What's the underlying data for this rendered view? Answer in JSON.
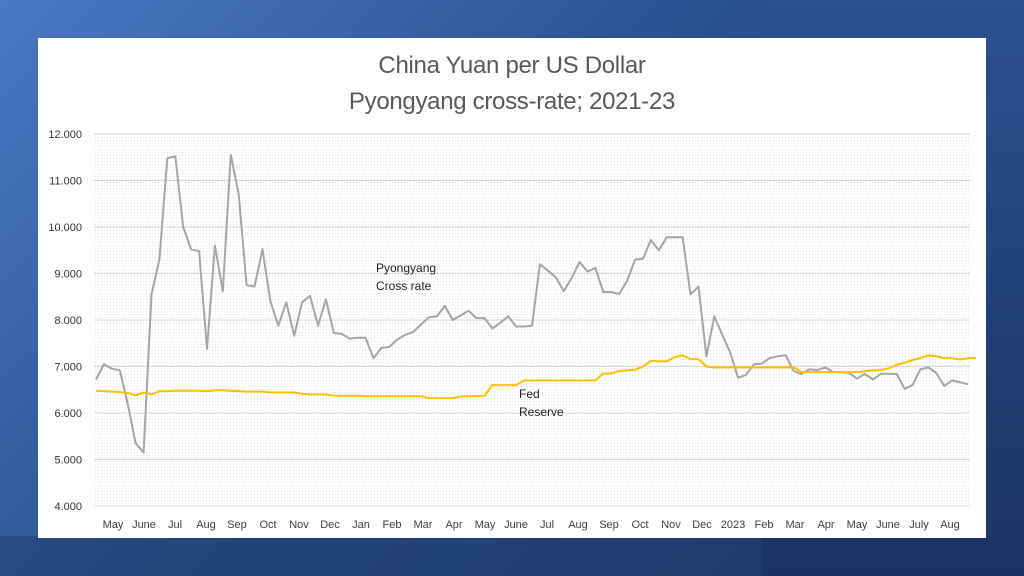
{
  "chart_data": {
    "type": "line",
    "title": "China Yuan per US Dollar",
    "subtitle": "Pyongyang cross-rate; 2021-23",
    "ylim": [
      4.0,
      12.0
    ],
    "y_ticks": [
      "4.000",
      "5.000",
      "6.000",
      "7.000",
      "8.000",
      "9.000",
      "10.000",
      "11.000",
      "12.000"
    ],
    "y_tick_values": [
      4,
      5,
      6,
      7,
      8,
      9,
      10,
      11,
      12
    ],
    "x_tick_labels": [
      "May",
      "June",
      "Jul",
      "Aug",
      "Sep",
      "Oct",
      "Nov",
      "Dec",
      "Jan",
      "Feb",
      "Mar",
      "Apr",
      "May",
      "June",
      "Jul",
      "Aug",
      "Sep",
      "Oct",
      "Nov",
      "Dec",
      "2023",
      "Feb",
      "Mar",
      "Apr",
      "May",
      "June",
      "July",
      "Aug"
    ],
    "grid": true,
    "annotations": [
      {
        "lines": [
          "Pyongyang",
          "Cross rate"
        ]
      },
      {
        "lines": [
          "Fed",
          "Reserve"
        ]
      }
    ],
    "series": [
      {
        "name": "Pyongyang Cross rate",
        "color": "#a6a6a6",
        "values": [
          6.72,
          7.05,
          6.95,
          6.92,
          6.2,
          5.35,
          5.15,
          8.55,
          9.3,
          11.48,
          11.52,
          10.0,
          9.52,
          9.48,
          7.38,
          9.6,
          8.62,
          11.55,
          10.7,
          8.75,
          8.72,
          9.52,
          8.4,
          7.88,
          8.38,
          7.66,
          8.38,
          8.52,
          7.88,
          8.45,
          7.72,
          7.7,
          7.6,
          7.62,
          7.62,
          7.18,
          7.4,
          7.42,
          7.58,
          7.68,
          7.74,
          7.9,
          8.06,
          8.08,
          8.3,
          8.0,
          8.1,
          8.2,
          8.04,
          8.04,
          7.82,
          7.94,
          8.08,
          7.86,
          7.86,
          7.88,
          9.2,
          9.06,
          8.92,
          8.62,
          8.9,
          9.25,
          9.04,
          9.12,
          8.6,
          8.6,
          8.56,
          8.84,
          9.3,
          9.32,
          9.72,
          9.5,
          9.78,
          9.78,
          9.78,
          8.55,
          8.72,
          7.22,
          8.08,
          7.68,
          7.3,
          6.76,
          6.82,
          7.05,
          7.06,
          7.18,
          7.22,
          7.24,
          6.9,
          6.84,
          6.94,
          6.92,
          6.98,
          6.88,
          6.88,
          6.86,
          6.74,
          6.84,
          6.72,
          6.84,
          6.84,
          6.84,
          6.52,
          6.6,
          6.94,
          6.98,
          6.86,
          6.58,
          6.7,
          6.66,
          6.62
        ]
      },
      {
        "name": "Fed Reserve",
        "color": "#ffc000",
        "values": [
          6.48,
          6.47,
          6.46,
          6.45,
          6.43,
          6.38,
          6.44,
          6.4,
          6.47,
          6.47,
          6.48,
          6.48,
          6.48,
          6.48,
          6.47,
          6.49,
          6.49,
          6.48,
          6.47,
          6.46,
          6.46,
          6.46,
          6.44,
          6.44,
          6.44,
          6.44,
          6.41,
          6.4,
          6.4,
          6.4,
          6.37,
          6.37,
          6.37,
          6.37,
          6.36,
          6.36,
          6.36,
          6.36,
          6.36,
          6.36,
          6.36,
          6.36,
          6.32,
          6.32,
          6.32,
          6.32,
          6.36,
          6.36,
          6.36,
          6.37,
          6.6,
          6.6,
          6.6,
          6.6,
          6.7,
          6.7,
          6.7,
          6.7,
          6.7,
          6.7,
          6.7,
          6.7,
          6.7,
          6.7,
          6.85,
          6.85,
          6.9,
          6.92,
          6.93,
          7.0,
          7.12,
          7.11,
          7.11,
          7.2,
          7.24,
          7.16,
          7.16,
          7.0,
          6.98,
          6.98,
          6.98,
          6.98,
          6.98,
          6.98,
          6.98,
          6.98,
          6.98,
          6.98,
          6.98,
          6.88,
          6.88,
          6.88,
          6.88,
          6.88,
          6.88,
          6.88,
          6.88,
          6.9,
          6.92,
          6.92,
          6.96,
          7.04,
          7.08,
          7.14,
          7.18,
          7.24,
          7.22,
          7.18,
          7.18,
          7.15,
          7.18,
          7.18
        ]
      }
    ]
  }
}
